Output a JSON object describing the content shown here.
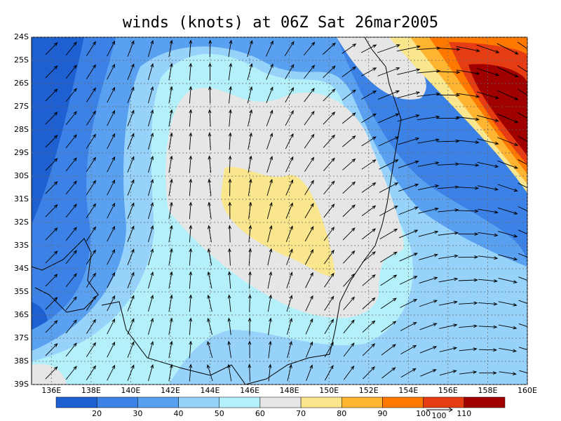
{
  "title": "winds (knots) at 06Z Sat 26mar2005",
  "map": {
    "lat_ticks": [
      "24S",
      "25S",
      "26S",
      "27S",
      "28S",
      "29S",
      "30S",
      "31S",
      "32S",
      "33S",
      "34S",
      "35S",
      "36S",
      "37S",
      "38S",
      "39S"
    ],
    "lon_ticks": [
      "136E",
      "138E",
      "140E",
      "142E",
      "144E",
      "146E",
      "148E",
      "150E",
      "152E",
      "154E",
      "156E",
      "158E",
      "160E"
    ]
  },
  "colorbar": {
    "levels": [
      20,
      30,
      40,
      50,
      60,
      70,
      80,
      90,
      100,
      110
    ],
    "colors": [
      "#1e5fd2",
      "#3c82e6",
      "#5aa0f0",
      "#96d2fa",
      "#b4f0fa",
      "#e6e6e6",
      "#fae68c",
      "#ffb432",
      "#ff7800",
      "#e63c14",
      "#a00000"
    ]
  },
  "reference_vector": "100"
}
